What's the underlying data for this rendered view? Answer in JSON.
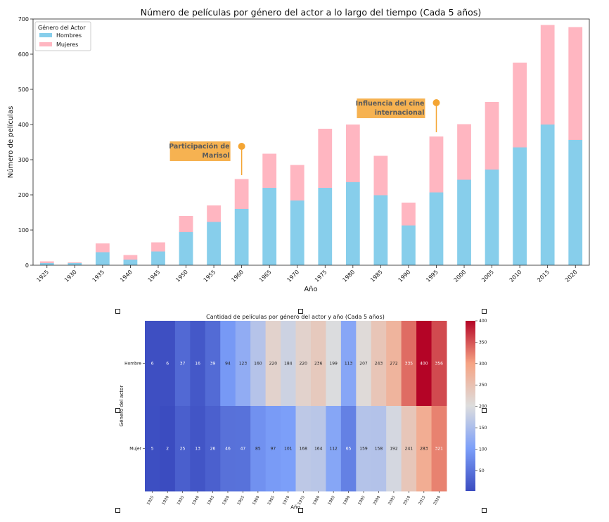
{
  "chart_data": [
    {
      "type": "bar",
      "stacked": true,
      "title": "Número de películas por género del actor a lo largo del tiempo (Cada 5 años)",
      "xlabel": "Año",
      "ylabel": "Número de películas",
      "ylim": [
        0,
        700
      ],
      "yticks": [
        0,
        100,
        200,
        300,
        400,
        500,
        600,
        700
      ],
      "categories": [
        "1925",
        "1930",
        "1935",
        "1940",
        "1945",
        "1950",
        "1955",
        "1960",
        "1965",
        "1970",
        "1975",
        "1980",
        "1985",
        "1990",
        "1995",
        "2000",
        "2005",
        "2010",
        "2015",
        "2020"
      ],
      "series": [
        {
          "name": "Hombres",
          "color": "#87CEEB",
          "values": [
            6,
            6,
            37,
            16,
            39,
            94,
            123,
            160,
            220,
            184,
            220,
            236,
            199,
            113,
            207,
            243,
            272,
            335,
            400,
            356
          ]
        },
        {
          "name": "Mujeres",
          "color": "#FFB6C1",
          "values": [
            5,
            2,
            25,
            13,
            26,
            46,
            47,
            85,
            97,
            101,
            168,
            164,
            112,
            65,
            159,
            158,
            192,
            241,
            283,
            321
          ]
        }
      ],
      "legend": {
        "title": "Género del Actor",
        "position": "top-left"
      },
      "annotations": [
        {
          "text_lines": [
            "Participación de",
            "Marisol"
          ],
          "x": "1960",
          "point_y": 338
        },
        {
          "text_lines": [
            "Influencia del cine",
            "internacional"
          ],
          "x": "1995",
          "point_y": 462
        }
      ],
      "annotation_color": "#F4A533"
    },
    {
      "type": "heatmap",
      "title": "Cantidad de películas por género del actor y año (Cada 5 años)",
      "xlabel": "Año",
      "ylabel": "Género del actor",
      "x": [
        "1925",
        "1930",
        "1935",
        "1940",
        "1945",
        "1950",
        "1955",
        "1960",
        "1965",
        "1970",
        "1975",
        "1980",
        "1985",
        "1990",
        "1995",
        "2000",
        "2005",
        "2010",
        "2015",
        "2020"
      ],
      "y": [
        "Hombre",
        "Mujer"
      ],
      "values": [
        [
          6,
          6,
          37,
          16,
          39,
          94,
          123,
          160,
          220,
          184,
          220,
          236,
          199,
          113,
          207,
          243,
          272,
          335,
          400,
          356
        ],
        [
          5,
          2,
          25,
          13,
          26,
          46,
          47,
          85,
          97,
          101,
          168,
          164,
          112,
          65,
          159,
          158,
          192,
          241,
          283,
          321
        ]
      ],
      "colormap": "coolwarm",
      "color_range": [
        2,
        400
      ],
      "colorbar_ticks": [
        50,
        100,
        150,
        200,
        250,
        300,
        350,
        400
      ]
    }
  ]
}
